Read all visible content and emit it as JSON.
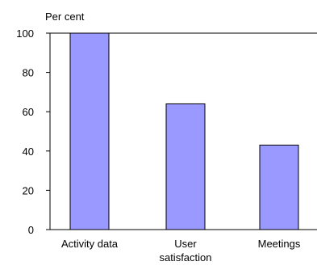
{
  "chart_data": {
    "type": "bar",
    "ylabel": "Per cent",
    "categories": [
      [
        "Activity data"
      ],
      [
        "User",
        "satisfaction"
      ],
      [
        "Meetings"
      ]
    ],
    "values": [
      100,
      64,
      43
    ],
    "ylim": [
      0,
      100
    ],
    "yticks": [
      "0",
      "20",
      "40",
      "60",
      "80",
      "100"
    ],
    "grid": false,
    "legend": "none",
    "colors": {
      "bar_fill": "#9999FF",
      "bar_stroke": "#000000",
      "axis": "#000000"
    }
  }
}
